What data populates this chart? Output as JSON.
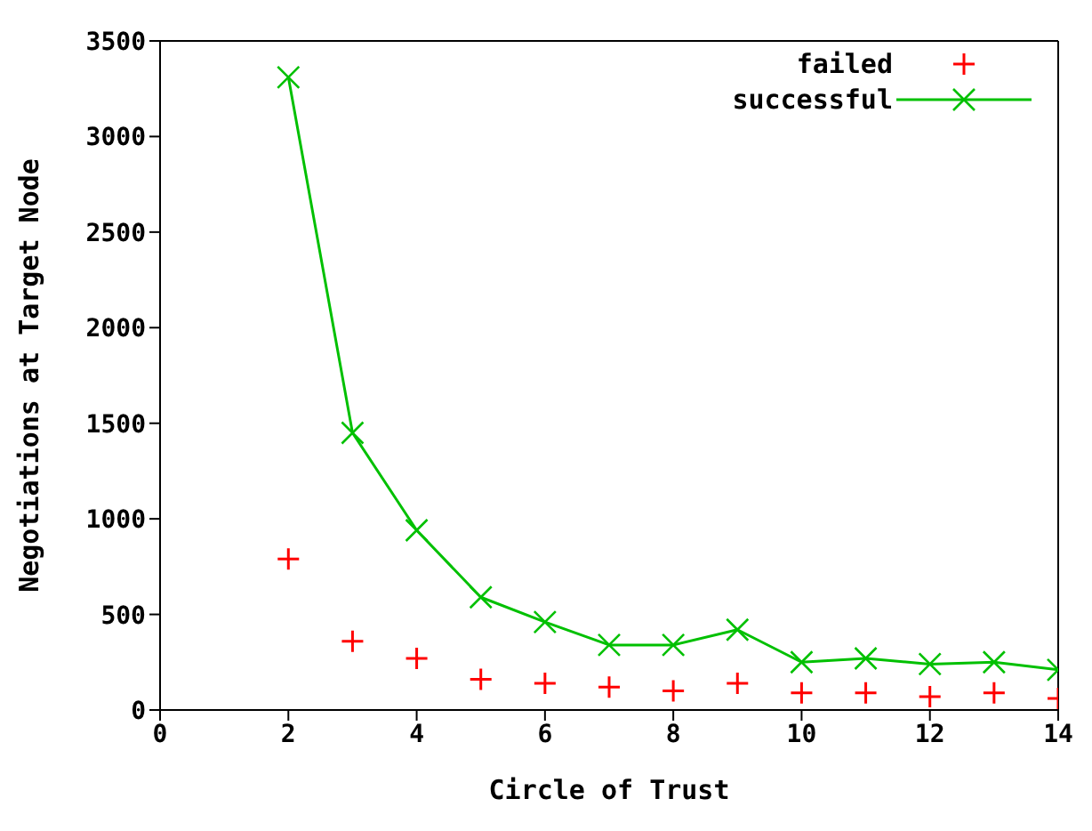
{
  "chart_data": {
    "type": "line",
    "xlabel": "Circle of Trust",
    "ylabel": "Negotiations at Target Node",
    "x": [
      2,
      3,
      4,
      5,
      6,
      7,
      8,
      9,
      10,
      11,
      12,
      13,
      14
    ],
    "series": [
      {
        "name": "failed",
        "type": "scatter",
        "color": "#ff0000",
        "marker": "cross",
        "values": [
          790,
          360,
          270,
          160,
          140,
          120,
          100,
          140,
          90,
          90,
          70,
          90,
          60
        ]
      },
      {
        "name": "successful",
        "color": "#00c000",
        "marker": "cross",
        "values": [
          3310,
          1450,
          940,
          590,
          460,
          340,
          340,
          420,
          250,
          270,
          240,
          250,
          210
        ]
      }
    ],
    "xlim": [
      0,
      14
    ],
    "xticks": [
      0,
      2,
      4,
      6,
      8,
      10,
      12,
      14
    ],
    "ylim": [
      0,
      3500
    ],
    "yticks": [
      0,
      500,
      1000,
      1500,
      2000,
      2500,
      3000,
      3500
    ],
    "grid": false,
    "legend": "top right"
  }
}
